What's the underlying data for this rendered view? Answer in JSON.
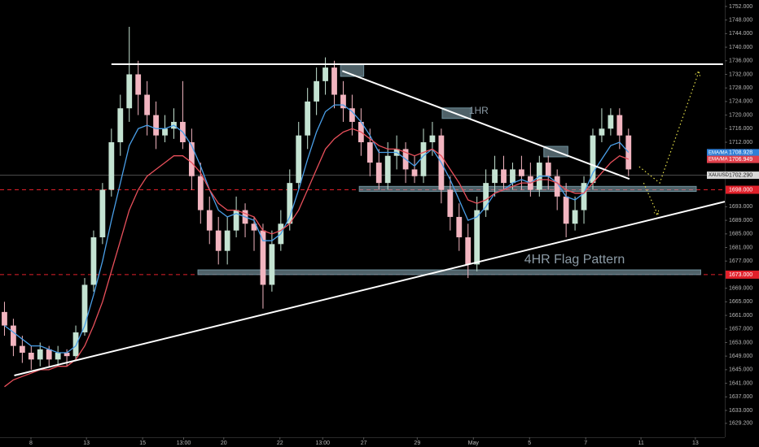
{
  "chart_data": {
    "type": "candlestick",
    "symbol": "XAUUSD",
    "background": "#000000",
    "up_color": "#c4e3d2",
    "down_color": "#f2b5c0",
    "xlim": [
      -0.5,
      80.8
    ],
    "ylim": [
      1625.1,
      1753.9
    ],
    "yticks": [
      {
        "value": 1752,
        "label": "1752.000"
      },
      {
        "value": 1748,
        "label": "1748.000"
      },
      {
        "value": 1744,
        "label": "1744.000"
      },
      {
        "value": 1740,
        "label": "1740.000"
      },
      {
        "value": 1736,
        "label": "1736.000"
      },
      {
        "value": 1732,
        "label": "1732.000"
      },
      {
        "value": 1728,
        "label": "1728.000"
      },
      {
        "value": 1724,
        "label": "1724.000"
      },
      {
        "value": 1720,
        "label": "1720.000"
      },
      {
        "value": 1716,
        "label": "1716.000"
      },
      {
        "value": 1712,
        "label": "1712.000"
      },
      {
        "value": 1693,
        "label": "1693.000"
      },
      {
        "value": 1689,
        "label": "1689.000"
      },
      {
        "value": 1685,
        "label": "1685.000"
      },
      {
        "value": 1681,
        "label": "1681.000"
      },
      {
        "value": 1677,
        "label": "1677.000"
      },
      {
        "value": 1669,
        "label": "1669.000"
      },
      {
        "value": 1665,
        "label": "1665.000"
      },
      {
        "value": 1661,
        "label": "1661.000"
      },
      {
        "value": 1657,
        "label": "1657.000"
      },
      {
        "value": 1653,
        "label": "1653.000"
      },
      {
        "value": 1649,
        "label": "1649.000"
      },
      {
        "value": 1645,
        "label": "1645.000"
      },
      {
        "value": 1641,
        "label": "1641.000"
      },
      {
        "value": 1637,
        "label": "1637.000"
      },
      {
        "value": 1633,
        "label": "1633.000"
      },
      {
        "value": 1629.2,
        "label": "1629.200"
      }
    ],
    "xticks": [
      {
        "value": 2.97,
        "label": "8"
      },
      {
        "value": 9.2,
        "label": "13"
      },
      {
        "value": 15.5,
        "label": "15"
      },
      {
        "value": 20.1,
        "label": "13:00"
      },
      {
        "value": 24.6,
        "label": "20"
      },
      {
        "value": 30.9,
        "label": "22"
      },
      {
        "value": 35.7,
        "label": "13:00"
      },
      {
        "value": 40.3,
        "label": "27"
      },
      {
        "value": 46.3,
        "label": "29"
      },
      {
        "value": 52.6,
        "label": "May"
      },
      {
        "value": 58.9,
        "label": "5"
      },
      {
        "value": 65.2,
        "label": "7"
      },
      {
        "value": 71.4,
        "label": "11"
      },
      {
        "value": 77.5,
        "label": "13"
      }
    ],
    "candles": {
      "open": [
        1662,
        1658,
        1652,
        1650,
        1648,
        1651,
        1648,
        1650,
        1649,
        1656,
        1670,
        1684,
        1698,
        1712,
        1722,
        1732,
        1726,
        1720,
        1714,
        1716,
        1718,
        1712,
        1702,
        1692,
        1686,
        1680,
        1686,
        1692,
        1688,
        1686,
        1670,
        1682,
        1688,
        1700,
        1714,
        1724,
        1730,
        1734,
        1726,
        1722,
        1718,
        1712,
        1706,
        1700,
        1708,
        1710,
        1704,
        1702,
        1712,
        1714,
        1698,
        1690,
        1684,
        1676,
        1692,
        1700,
        1704,
        1700,
        1704,
        1702,
        1698,
        1706,
        1702,
        1696,
        1688,
        1692,
        1700,
        1714,
        1716,
        1720,
        1714
      ],
      "high": [
        1665,
        1660,
        1655,
        1652,
        1653,
        1652,
        1652,
        1651,
        1658,
        1672,
        1686,
        1700,
        1716,
        1726,
        1746,
        1736,
        1730,
        1724,
        1720,
        1722,
        1730,
        1716,
        1706,
        1696,
        1690,
        1690,
        1696,
        1694,
        1690,
        1688,
        1686,
        1692,
        1704,
        1718,
        1728,
        1734,
        1737,
        1736,
        1730,
        1726,
        1722,
        1716,
        1710,
        1712,
        1714,
        1712,
        1708,
        1716,
        1718,
        1716,
        1702,
        1694,
        1688,
        1696,
        1704,
        1708,
        1708,
        1706,
        1708,
        1706,
        1708,
        1708,
        1704,
        1700,
        1696,
        1702,
        1716,
        1722,
        1722,
        1722,
        1716
      ],
      "low": [
        1655,
        1649,
        1647,
        1645,
        1646,
        1646,
        1646,
        1646,
        1648,
        1655,
        1668,
        1682,
        1696,
        1708,
        1718,
        1720,
        1714,
        1710,
        1712,
        1713,
        1710,
        1698,
        1688,
        1682,
        1676,
        1676,
        1684,
        1684,
        1680,
        1663,
        1668,
        1680,
        1686,
        1698,
        1710,
        1720,
        1726,
        1722,
        1718,
        1714,
        1708,
        1702,
        1698,
        1698,
        1704,
        1700,
        1700,
        1700,
        1708,
        1694,
        1686,
        1680,
        1672,
        1674,
        1690,
        1696,
        1698,
        1698,
        1698,
        1696,
        1696,
        1698,
        1692,
        1684,
        1686,
        1688,
        1698,
        1712,
        1714,
        1710,
        1702
      ],
      "close": [
        1658,
        1652,
        1650,
        1648,
        1651,
        1648,
        1650,
        1649,
        1656,
        1670,
        1684,
        1698,
        1712,
        1722,
        1732,
        1726,
        1720,
        1714,
        1716,
        1718,
        1712,
        1702,
        1692,
        1686,
        1680,
        1686,
        1692,
        1688,
        1686,
        1670,
        1682,
        1688,
        1700,
        1714,
        1724,
        1730,
        1734,
        1726,
        1722,
        1718,
        1712,
        1706,
        1700,
        1708,
        1710,
        1704,
        1702,
        1712,
        1714,
        1698,
        1690,
        1684,
        1676,
        1692,
        1700,
        1704,
        1700,
        1704,
        1702,
        1698,
        1706,
        1702,
        1696,
        1688,
        1692,
        1700,
        1714,
        1716,
        1720,
        1714,
        1704
      ]
    },
    "series": [
      {
        "name": "EMA/MA",
        "color": "#4a9fe8",
        "values": [
          1658,
          1656,
          1654,
          1652,
          1652,
          1651,
          1650,
          1650,
          1652,
          1658,
          1667,
          1677,
          1689,
          1700,
          1711,
          1716,
          1717,
          1716,
          1716,
          1717,
          1715,
          1711,
          1705,
          1698,
          1692,
          1690,
          1691,
          1690,
          1689,
          1683,
          1683,
          1685,
          1690,
          1698,
          1707,
          1715,
          1721,
          1723,
          1723,
          1721,
          1718,
          1714,
          1709,
          1709,
          1709,
          1707,
          1705,
          1708,
          1710,
          1706,
          1701,
          1695,
          1689,
          1690,
          1693,
          1697,
          1698,
          1700,
          1701,
          1700,
          1702,
          1702,
          1700,
          1696,
          1695,
          1697,
          1703,
          1707,
          1711,
          1712,
          1709
        ]
      },
      {
        "name": "EMA/MA",
        "color": "#e8505b",
        "values": [
          1640,
          1642,
          1643,
          1644,
          1645,
          1645,
          1646,
          1646,
          1648,
          1652,
          1658,
          1665,
          1674,
          1683,
          1692,
          1698,
          1702,
          1704,
          1706,
          1708,
          1708,
          1706,
          1703,
          1698,
          1694,
          1692,
          1692,
          1691,
          1690,
          1686,
          1685,
          1686,
          1688,
          1692,
          1698,
          1704,
          1710,
          1713,
          1715,
          1716,
          1715,
          1713,
          1711,
          1710,
          1710,
          1709,
          1708,
          1709,
          1710,
          1708,
          1704,
          1700,
          1695,
          1694,
          1695,
          1697,
          1698,
          1699,
          1700,
          1700,
          1701,
          1701,
          1700,
          1698,
          1697,
          1697,
          1700,
          1703,
          1706,
          1708,
          1707
        ]
      }
    ],
    "price_labels": [
      {
        "name": "EMA/MA",
        "value": 1708.928,
        "label": "1708.928",
        "color": "#2f7fd6"
      },
      {
        "name": "EMA/MA",
        "value": 1706.949,
        "label": "1706.949",
        "color": "#e0404c"
      },
      {
        "name": "XAUUSD",
        "value": 1702.29,
        "label": "1702.290",
        "color": "#d8d8d8"
      }
    ],
    "levels": [
      {
        "value": 1698,
        "label": "1698.000",
        "color": "#e0202a"
      },
      {
        "value": 1673,
        "label": "1673.000",
        "color": "#e0202a"
      }
    ],
    "trend_lines": [
      {
        "x": [
          12.0,
          80.6
        ],
        "y": [
          1735,
          1735
        ]
      },
      {
        "x": [
          37.9,
          70.1
        ],
        "y": [
          1733,
          1701.2
        ]
      },
      {
        "x": [
          1.1,
          80.8
        ],
        "y": [
          1643.3,
          1694.5
        ]
      }
    ],
    "zones": [
      {
        "x": [
          39.8,
          77.6
        ],
        "y": [
          1699.0,
          1697.5
        ]
      },
      {
        "x": [
          21.7,
          78.1
        ],
        "y": [
          1674.4,
          1673.0
        ]
      },
      {
        "x": [
          37.7,
          40.3
        ],
        "y": [
          1734.8,
          1731.4
        ]
      },
      {
        "x": [
          49.1,
          52.3
        ],
        "y": [
          1722.1,
          1719.0
        ]
      },
      {
        "x": [
          60.5,
          63.2
        ],
        "y": [
          1710.8,
          1707.7
        ]
      }
    ],
    "projections": [
      {
        "x": [
          71.2,
          73.5,
          77.9
        ],
        "y": [
          1704.8,
          1700.0,
          1732.9
        ]
      },
      {
        "x": [
          71.7,
          73.3
        ],
        "y": [
          1700.0,
          1690.5
        ]
      }
    ],
    "annotations": [
      {
        "text": "1HR",
        "x": 52.1,
        "y": 1721.2,
        "size": 12
      },
      {
        "text": "4HR Flag Pattern",
        "x": 58.3,
        "y": 1677.4,
        "size": 16
      }
    ]
  }
}
